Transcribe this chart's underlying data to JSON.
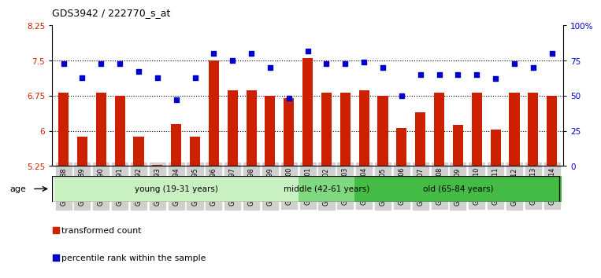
{
  "title": "GDS3942 / 222770_s_at",
  "samples": [
    "GSM812988",
    "GSM812989",
    "GSM812990",
    "GSM812991",
    "GSM812992",
    "GSM812993",
    "GSM812994",
    "GSM812995",
    "GSM812996",
    "GSM812997",
    "GSM812998",
    "GSM812999",
    "GSM813000",
    "GSM813001",
    "GSM813002",
    "GSM813003",
    "GSM813004",
    "GSM813005",
    "GSM813006",
    "GSM813007",
    "GSM813008",
    "GSM813009",
    "GSM813010",
    "GSM813011",
    "GSM813012",
    "GSM813013",
    "GSM813014"
  ],
  "bar_values": [
    6.82,
    5.88,
    6.82,
    6.74,
    5.88,
    5.27,
    6.14,
    5.88,
    7.5,
    6.86,
    6.86,
    6.75,
    6.7,
    7.55,
    6.82,
    6.82,
    6.86,
    6.75,
    6.06,
    6.4,
    6.82,
    6.12,
    6.82,
    6.02,
    6.82,
    6.82,
    6.74
  ],
  "dot_values": [
    73,
    63,
    73,
    73,
    67,
    63,
    47,
    63,
    80,
    75,
    80,
    70,
    48,
    82,
    73,
    73,
    74,
    70,
    50,
    65,
    65,
    65,
    65,
    62,
    73,
    70,
    80
  ],
  "ylim_left": [
    5.25,
    8.25
  ],
  "ylim_right": [
    0,
    100
  ],
  "yticks_left": [
    5.25,
    6.0,
    6.75,
    7.5,
    8.25
  ],
  "yticks_right": [
    0,
    25,
    50,
    75,
    100
  ],
  "ytick_labels_left": [
    "5.25",
    "6",
    "6.75",
    "7.5",
    "8.25"
  ],
  "ytick_labels_right": [
    "0",
    "25",
    "50",
    "75",
    "100%"
  ],
  "groups": [
    {
      "label": "young (19-31 years)",
      "start": 0,
      "end": 13,
      "color": "#c8f0c0"
    },
    {
      "label": "middle (42-61 years)",
      "start": 13,
      "end": 16,
      "color": "#80d880"
    },
    {
      "label": "old (65-84 years)",
      "start": 16,
      "end": 27,
      "color": "#44bb44"
    }
  ],
  "bar_color": "#cc2000",
  "dot_color": "#0000cc",
  "bg_color": "#ffffff",
  "tick_color_left": "#cc2000",
  "tick_color_right": "#0000cc",
  "age_label": "age",
  "legend_bar": "transformed count",
  "legend_dot": "percentile rank within the sample",
  "dotted_line_color": "#000000",
  "xtick_bg": "#d0d0d0"
}
